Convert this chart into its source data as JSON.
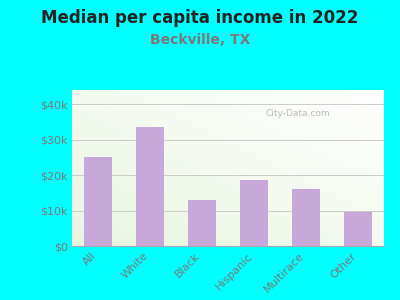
{
  "title": "Median per capita income in 2022",
  "subtitle": "Beckville, TX",
  "categories": [
    "All",
    "White",
    "Black",
    "Hispanic",
    "Multirace",
    "Other"
  ],
  "values": [
    25000,
    33500,
    13000,
    18500,
    16000,
    9500
  ],
  "bar_color": "#c8a8d8",
  "background_color": "#00FFFF",
  "chart_bg_color_topleft": "#e8f5e0",
  "chart_bg_color_topright": "#ffffff",
  "chart_bg_color_bottom": "#e8f5e0",
  "title_fontsize": 12,
  "subtitle_fontsize": 10,
  "ylabel_ticks": [
    0,
    10000,
    20000,
    30000,
    40000
  ],
  "ylabel_labels": [
    "$0",
    "$10k",
    "$20k",
    "$30k",
    "$40k"
  ],
  "ylim": [
    0,
    44000
  ],
  "watermark": "City-Data.com",
  "title_color": "#222222",
  "subtitle_color": "#7a7a7a",
  "tick_label_color": "#7a7a7a"
}
